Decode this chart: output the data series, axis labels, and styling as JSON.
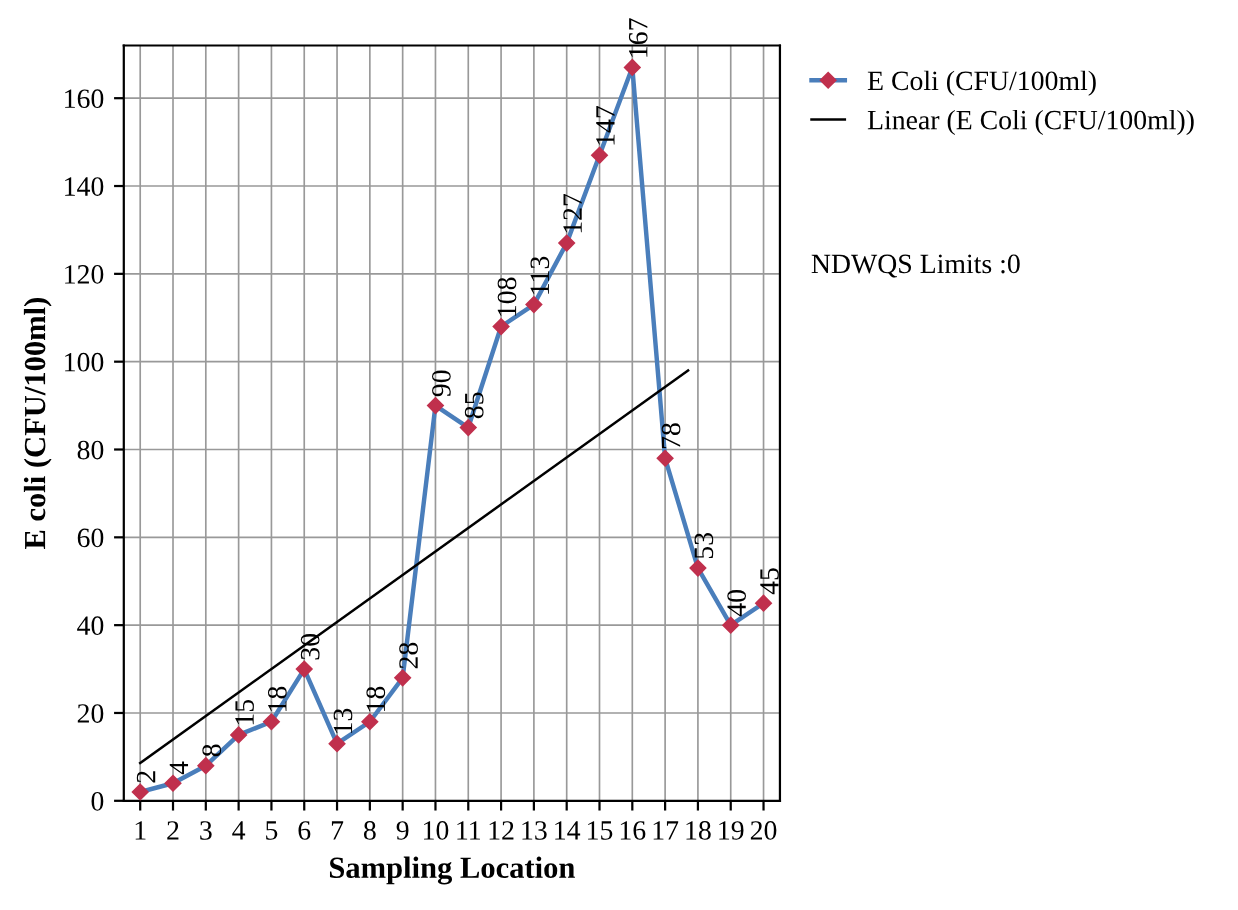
{
  "chart_data": {
    "type": "line",
    "xlabel": "Sampling Location",
    "ylabel": "E coli (CFU/100ml)",
    "x": [
      1,
      2,
      3,
      4,
      5,
      6,
      7,
      8,
      9,
      10,
      11,
      12,
      13,
      14,
      15,
      16,
      17,
      18,
      19,
      20
    ],
    "series": [
      {
        "name": "E Coli (CFU/100ml)",
        "color": "#4a7ebb",
        "marker": "diamond",
        "values": [
          2,
          4,
          8,
          15,
          18,
          30,
          13,
          18,
          28,
          90,
          85,
          108,
          113,
          127,
          147,
          167,
          78,
          53,
          40,
          45
        ],
        "value_labels": [
          "2",
          "4",
          "8",
          "15",
          "18",
          "30",
          "13",
          "18",
          "28",
          "90",
          "85",
          "108",
          "113",
          "127",
          "147",
          "167",
          "78",
          "53",
          "40",
          "45"
        ]
      },
      {
        "name": "Linear (E Coli (CFU/100ml))",
        "color": "#000000",
        "type": "line",
        "marker": "none",
        "x": [
          1,
          17.7
        ],
        "values": [
          8.6,
          98
        ]
      }
    ],
    "annotations": [
      "NDWQS Limits :0"
    ],
    "xlim": [
      0.5,
      20.5
    ],
    "xticks": [
      1,
      2,
      3,
      4,
      5,
      6,
      7,
      8,
      9,
      10,
      11,
      12,
      13,
      14,
      15,
      16,
      17,
      18,
      19,
      20
    ],
    "ylim": [
      0,
      172
    ],
    "yticks": [
      0,
      20,
      40,
      60,
      80,
      100,
      120,
      140,
      160
    ],
    "grid": true,
    "legend": "right"
  }
}
